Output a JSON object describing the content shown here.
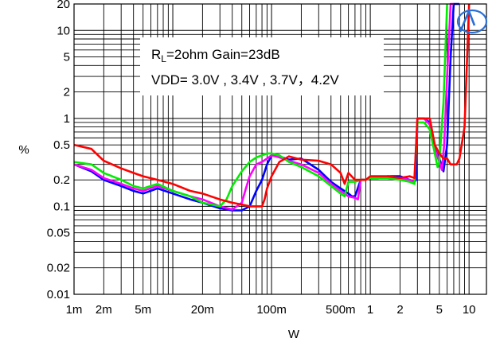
{
  "chart_data": {
    "type": "line",
    "title": "",
    "xlabel": "W",
    "ylabel": "%",
    "xscale": "log",
    "yscale": "log",
    "xlim": [
      0.001,
      15
    ],
    "ylim": [
      0.01,
      20
    ],
    "grid": true,
    "x_ticks": [
      {
        "value": 0.001,
        "label": "1m"
      },
      {
        "value": 0.002,
        "label": "2m"
      },
      {
        "value": 0.005,
        "label": "5m"
      },
      {
        "value": 0.02,
        "label": "20m"
      },
      {
        "value": 0.1,
        "label": "100m"
      },
      {
        "value": 0.5,
        "label": "500m"
      },
      {
        "value": 1,
        "label": "1"
      },
      {
        "value": 2,
        "label": "2"
      },
      {
        "value": 5,
        "label": "5"
      },
      {
        "value": 10,
        "label": "10"
      }
    ],
    "y_ticks": [
      {
        "value": 0.01,
        "label": "0.01"
      },
      {
        "value": 0.02,
        "label": "0.02"
      },
      {
        "value": 0.05,
        "label": "0.05"
      },
      {
        "value": 0.1,
        "label": "0.1"
      },
      {
        "value": 0.2,
        "label": "0.2"
      },
      {
        "value": 0.5,
        "label": "0.5"
      },
      {
        "value": 1,
        "label": "1"
      },
      {
        "value": 2,
        "label": "2"
      },
      {
        "value": 5,
        "label": "5"
      },
      {
        "value": 10,
        "label": "10"
      },
      {
        "value": 20,
        "label": "20"
      }
    ],
    "annotation": {
      "line1_prefix": "R",
      "line1_subscript": "L",
      "line1_suffix": "=2ohm Gain=23dB",
      "line2": "VDD= 3.0V , 3.4V , 3.7V，4.2V"
    },
    "series": [
      {
        "color": "#0000ff",
        "x": [
          0.001,
          0.0015,
          0.002,
          0.003,
          0.004,
          0.005,
          0.007,
          0.01,
          0.015,
          0.02,
          0.03,
          0.04,
          0.05,
          0.06,
          0.07,
          0.08,
          0.09,
          0.1,
          0.12,
          0.15,
          0.2,
          0.3,
          0.4,
          0.5,
          0.6,
          0.65,
          0.7,
          0.8,
          0.9,
          1.0,
          1.2,
          1.5,
          2.0,
          2.5,
          2.8,
          2.9,
          3.0,
          3.5,
          4.0,
          4.5,
          5.0,
          5.5,
          6.0,
          6.5,
          7.0,
          7.3,
          8.0
        ],
        "y": [
          0.3,
          0.25,
          0.2,
          0.17,
          0.15,
          0.14,
          0.16,
          0.14,
          0.12,
          0.11,
          0.095,
          0.09,
          0.09,
          0.1,
          0.15,
          0.2,
          0.3,
          0.38,
          0.37,
          0.34,
          0.35,
          0.26,
          0.19,
          0.16,
          0.14,
          0.13,
          0.13,
          0.2,
          0.2,
          0.21,
          0.21,
          0.22,
          0.22,
          0.2,
          0.19,
          0.2,
          1.0,
          1.0,
          0.9,
          0.45,
          0.35,
          0.25,
          0.5,
          5,
          20,
          20,
          20
        ]
      },
      {
        "color": "#ff00ff",
        "x": [
          0.001,
          0.0015,
          0.002,
          0.003,
          0.004,
          0.005,
          0.007,
          0.01,
          0.015,
          0.02,
          0.03,
          0.04,
          0.05,
          0.055,
          0.06,
          0.07,
          0.08,
          0.09,
          0.1,
          0.12,
          0.15,
          0.2,
          0.3,
          0.4,
          0.5,
          0.6,
          0.7,
          0.75,
          0.8,
          0.9,
          1.0,
          1.2,
          1.5,
          2.0,
          2.5,
          2.8,
          3.0,
          3.5,
          4.0,
          4.5,
          5.0,
          5.3,
          5.6,
          6.0,
          6.5,
          7.0
        ],
        "y": [
          0.3,
          0.26,
          0.21,
          0.18,
          0.16,
          0.15,
          0.17,
          0.15,
          0.13,
          0.12,
          0.1,
          0.092,
          0.11,
          0.16,
          0.22,
          0.3,
          0.32,
          0.35,
          0.38,
          0.36,
          0.33,
          0.3,
          0.24,
          0.18,
          0.15,
          0.13,
          0.125,
          0.12,
          0.2,
          0.2,
          0.21,
          0.21,
          0.22,
          0.21,
          0.2,
          0.19,
          1.0,
          1.0,
          0.85,
          0.45,
          0.32,
          0.26,
          0.5,
          3,
          20,
          20
        ]
      },
      {
        "color": "#00ee00",
        "x": [
          0.001,
          0.0015,
          0.002,
          0.003,
          0.004,
          0.005,
          0.007,
          0.01,
          0.015,
          0.02,
          0.03,
          0.035,
          0.04,
          0.05,
          0.06,
          0.07,
          0.08,
          0.09,
          0.1,
          0.12,
          0.15,
          0.2,
          0.3,
          0.4,
          0.5,
          0.55,
          0.6,
          0.7,
          0.8,
          0.9,
          1.0,
          1.2,
          1.5,
          2.0,
          2.5,
          2.8,
          3.0,
          3.5,
          4.0,
          4.5,
          4.8,
          5.0,
          5.5,
          6.0
        ],
        "y": [
          0.32,
          0.3,
          0.24,
          0.2,
          0.17,
          0.16,
          0.18,
          0.15,
          0.13,
          0.11,
          0.1,
          0.12,
          0.17,
          0.25,
          0.32,
          0.36,
          0.38,
          0.4,
          0.4,
          0.38,
          0.32,
          0.28,
          0.22,
          0.17,
          0.14,
          0.13,
          0.19,
          0.19,
          0.2,
          0.2,
          0.21,
          0.21,
          0.21,
          0.2,
          0.19,
          0.18,
          0.9,
          0.9,
          0.75,
          0.4,
          0.28,
          0.32,
          1.5,
          20
        ]
      },
      {
        "color": "#ff0000",
        "x": [
          0.001,
          0.0015,
          0.002,
          0.003,
          0.004,
          0.005,
          0.007,
          0.01,
          0.015,
          0.02,
          0.03,
          0.04,
          0.05,
          0.06,
          0.07,
          0.08,
          0.085,
          0.09,
          0.1,
          0.12,
          0.15,
          0.2,
          0.3,
          0.4,
          0.5,
          0.55,
          0.6,
          0.7,
          0.8,
          0.9,
          1.0,
          1.2,
          1.5,
          2.0,
          2.5,
          2.8,
          3.0,
          3.5,
          4.0,
          4.5,
          5.0,
          5.5,
          6.0,
          6.5,
          7.0,
          7.5,
          8.0,
          9.0,
          10.0
        ],
        "y": [
          0.5,
          0.45,
          0.33,
          0.27,
          0.24,
          0.22,
          0.2,
          0.18,
          0.15,
          0.14,
          0.12,
          0.11,
          0.105,
          0.1,
          0.1,
          0.1,
          0.12,
          0.16,
          0.22,
          0.32,
          0.37,
          0.34,
          0.33,
          0.3,
          0.24,
          0.18,
          0.24,
          0.2,
          0.2,
          0.2,
          0.22,
          0.22,
          0.22,
          0.21,
          0.22,
          0.21,
          1.0,
          1.0,
          1.0,
          0.5,
          0.4,
          0.35,
          0.35,
          0.3,
          0.3,
          0.3,
          0.35,
          0.8,
          20
        ]
      }
    ]
  }
}
